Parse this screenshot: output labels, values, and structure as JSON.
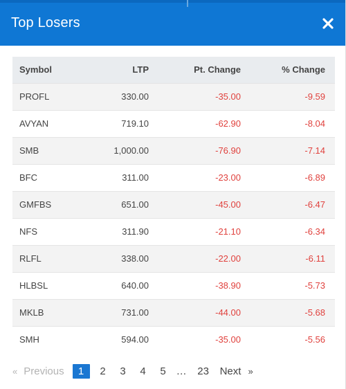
{
  "header": {
    "title": "Top Losers",
    "close_icon": "close-icon"
  },
  "table": {
    "columns": [
      "Symbol",
      "LTP",
      "Pt. Change",
      "% Change"
    ],
    "rows": [
      {
        "symbol": "PROFL",
        "ltp": "330.00",
        "pt_change": "-35.00",
        "pct_change": "-9.59"
      },
      {
        "symbol": "AVYAN",
        "ltp": "719.10",
        "pt_change": "-62.90",
        "pct_change": "-8.04"
      },
      {
        "symbol": "SMB",
        "ltp": "1,000.00",
        "pt_change": "-76.90",
        "pct_change": "-7.14"
      },
      {
        "symbol": "BFC",
        "ltp": "311.00",
        "pt_change": "-23.00",
        "pct_change": "-6.89"
      },
      {
        "symbol": "GMFBS",
        "ltp": "651.00",
        "pt_change": "-45.00",
        "pct_change": "-6.47"
      },
      {
        "symbol": "NFS",
        "ltp": "311.90",
        "pt_change": "-21.10",
        "pct_change": "-6.34"
      },
      {
        "symbol": "RLFL",
        "ltp": "338.00",
        "pt_change": "-22.00",
        "pct_change": "-6.11"
      },
      {
        "symbol": "HLBSL",
        "ltp": "640.00",
        "pt_change": "-38.90",
        "pct_change": "-5.73"
      },
      {
        "symbol": "MKLB",
        "ltp": "731.00",
        "pt_change": "-44.00",
        "pct_change": "-5.68"
      },
      {
        "symbol": "SMH",
        "ltp": "594.00",
        "pt_change": "-35.00",
        "pct_change": "-5.56"
      }
    ]
  },
  "pagination": {
    "prev_arrow": "«",
    "previous": "Previous",
    "pages": [
      "1",
      "2",
      "3",
      "4",
      "5"
    ],
    "active_page": "1",
    "ellipsis": "…",
    "last_page": "23",
    "next": "Next",
    "next_arrow": "»"
  },
  "colors": {
    "header_bg": "#0f77d4",
    "negative": "#e0413d",
    "active_page": "#1a77d2"
  }
}
